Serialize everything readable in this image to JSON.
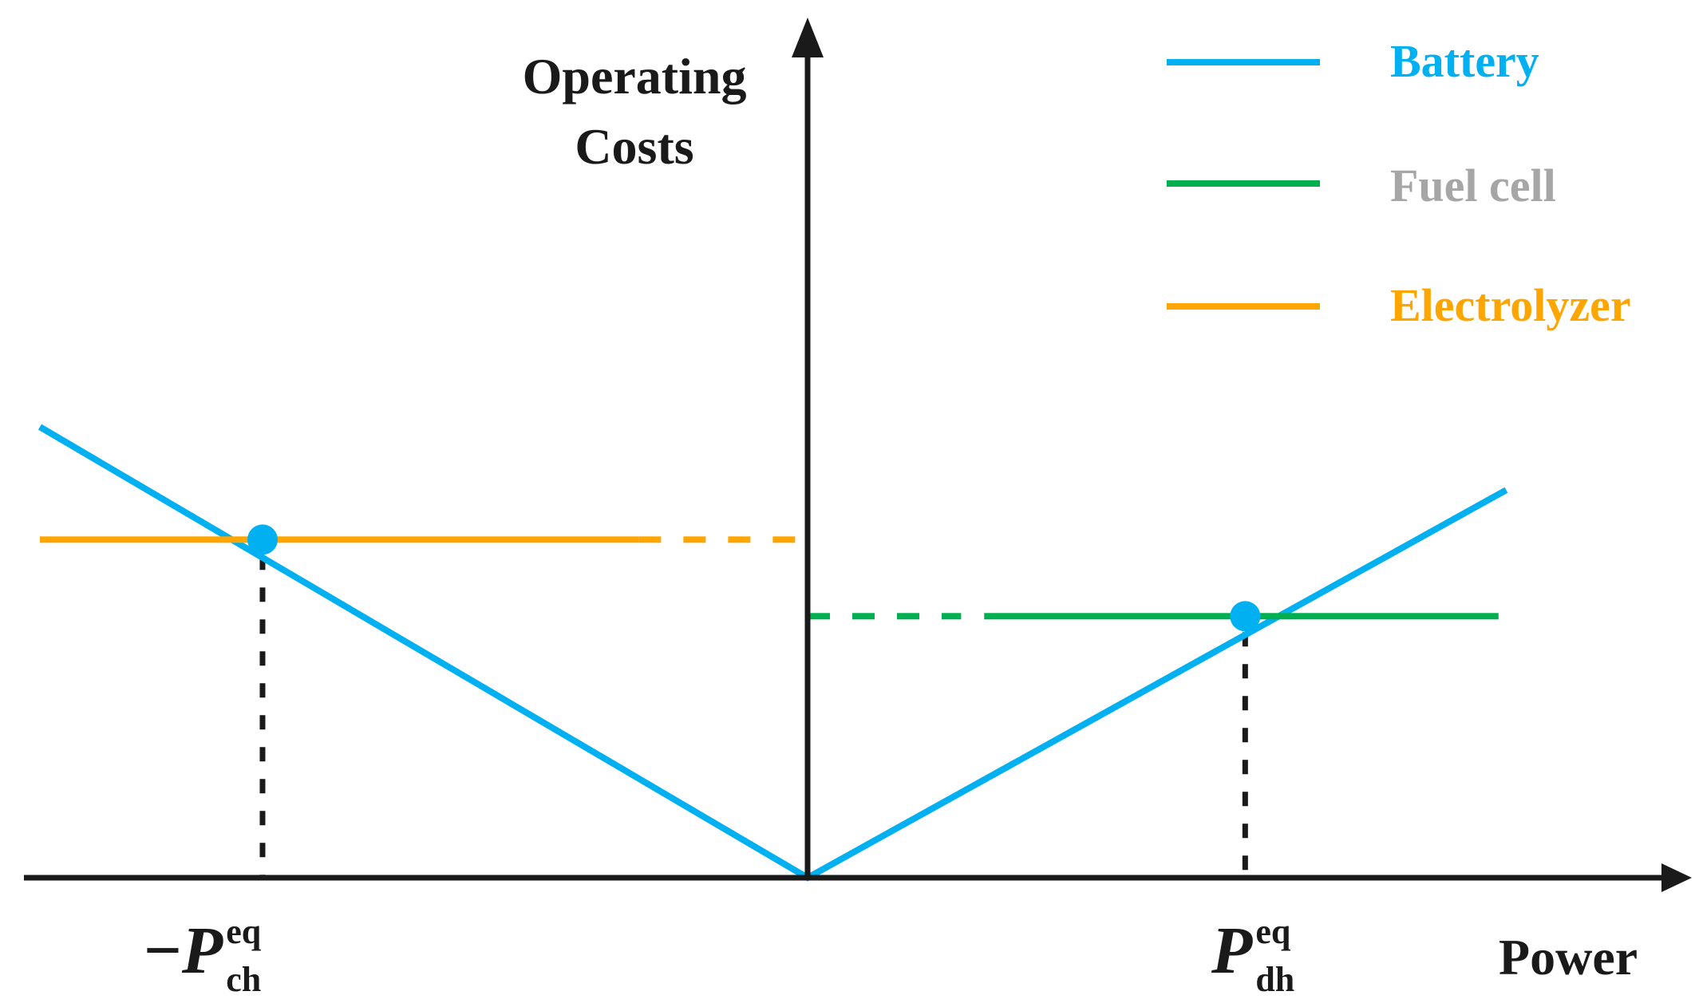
{
  "chart_data": {
    "type": "line",
    "title": "",
    "xlabel": "Power",
    "ylabel_lines": [
      "Operating",
      "Costs"
    ],
    "legend_position": "top-right",
    "series": [
      {
        "name": "Battery",
        "color": "#00B0F0",
        "x": [
          -1.0,
          0.0,
          0.91
        ],
        "y": [
          1.0,
          0.0,
          0.86
        ],
        "style": "solid"
      },
      {
        "name": "Fuel cell",
        "color": "#00B050",
        "segments": [
          {
            "x": [
              0.0,
              0.2
            ],
            "y": [
              0.58,
              0.58
            ],
            "style": "dashed"
          },
          {
            "x": [
              0.23,
              0.9
            ],
            "y": [
              0.58,
              0.58
            ],
            "style": "solid"
          }
        ]
      },
      {
        "name": "Electrolyzer",
        "color": "#FFA500",
        "segments": [
          {
            "x": [
              -1.0,
              -0.22
            ],
            "y": [
              0.75,
              0.75
            ],
            "style": "solid"
          },
          {
            "x": [
              -0.22,
              0.0
            ],
            "y": [
              0.75,
              0.75
            ],
            "style": "dashed"
          }
        ]
      }
    ],
    "markers": [
      {
        "x": -0.71,
        "y": 0.75,
        "color": "#00B0F0"
      },
      {
        "x": 0.57,
        "y": 0.58,
        "color": "#00B0F0"
      }
    ],
    "x_ticks": [
      {
        "x": -0.71,
        "prefix": "−",
        "main": "P",
        "sup": "eq",
        "sub": "ch"
      },
      {
        "x": 0.57,
        "prefix": "",
        "main": "P",
        "sup": "eq",
        "sub": "dh"
      }
    ]
  },
  "legend": {
    "items": [
      {
        "label": "Battery",
        "color": "#00B0F0",
        "text_color": "#00B0F0"
      },
      {
        "label": "Fuel cell",
        "color": "#00B050",
        "text_color": "#A6A6A6"
      },
      {
        "label": "Electrolyzer",
        "color": "#FFA500",
        "text_color": "#FFA500"
      }
    ]
  },
  "axis_color": "#1a1a1a"
}
